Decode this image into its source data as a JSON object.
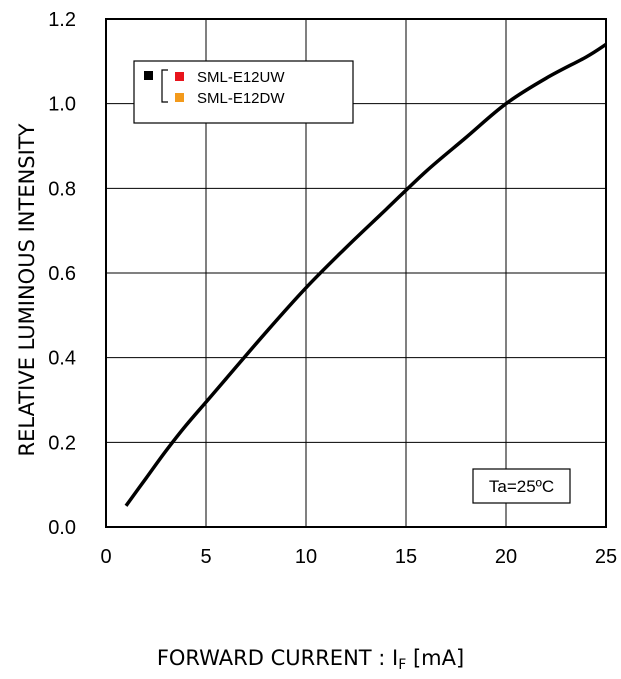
{
  "chart_data": {
    "type": "line",
    "title": "",
    "xlabel": {
      "prefix": "FORWARD CURRENT : I",
      "subscript": "F",
      "suffix": " [mA]"
    },
    "ylabel": "RELATIVE LUMINOUS INTENSITY",
    "xlim": [
      0,
      25
    ],
    "ylim": [
      0,
      1.2
    ],
    "x_ticks": [
      "0",
      "5",
      "10",
      "15",
      "20",
      "25"
    ],
    "y_ticks": [
      "0.0",
      "0.2",
      "0.4",
      "0.6",
      "0.8",
      "1.0",
      "1.2"
    ],
    "grid": true,
    "legend": {
      "placement": "top-left",
      "entries": [
        {
          "name": "SML-E12UW",
          "color": "#e8141c"
        },
        {
          "name": "SML-E12DW",
          "color": "#f39a1b"
        }
      ],
      "group_marker_color": "#000000"
    },
    "annotation": "Ta=25ºC",
    "series": [
      {
        "color": "#000000",
        "x": [
          1,
          2,
          3,
          4,
          5,
          6,
          8,
          10,
          12,
          14,
          16,
          18,
          20,
          22,
          24,
          25
        ],
        "y": [
          0.05,
          0.115,
          0.18,
          0.24,
          0.295,
          0.35,
          0.46,
          0.565,
          0.66,
          0.75,
          0.84,
          0.92,
          1.0,
          1.06,
          1.11,
          1.14
        ]
      }
    ]
  }
}
